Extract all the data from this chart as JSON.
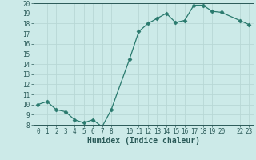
{
  "x": [
    0,
    1,
    2,
    3,
    4,
    5,
    6,
    7,
    8,
    10,
    11,
    12,
    13,
    14,
    15,
    16,
    17,
    18,
    19,
    20,
    22,
    23
  ],
  "y": [
    10.0,
    10.3,
    9.5,
    9.3,
    8.5,
    8.2,
    8.5,
    7.8,
    9.5,
    14.5,
    17.2,
    18.0,
    18.5,
    19.0,
    18.1,
    18.3,
    19.8,
    19.8,
    19.2,
    19.1,
    18.3,
    17.9
  ],
  "line_color": "#2a7a6e",
  "marker": "D",
  "marker_size": 2.5,
  "bg_color": "#cceae8",
  "grid_color": "#b8d8d5",
  "tick_color": "#2a5a58",
  "xlabel": "Humidex (Indice chaleur)",
  "ylim": [
    8,
    20
  ],
  "xlim": [
    -0.5,
    23.5
  ],
  "yticks": [
    8,
    9,
    10,
    11,
    12,
    13,
    14,
    15,
    16,
    17,
    18,
    19,
    20
  ],
  "xticks": [
    0,
    1,
    2,
    3,
    4,
    5,
    6,
    7,
    8,
    10,
    11,
    12,
    13,
    14,
    15,
    16,
    17,
    18,
    19,
    20,
    22,
    23
  ],
  "xlabel_fontsize": 7,
  "tick_fontsize": 5.5
}
